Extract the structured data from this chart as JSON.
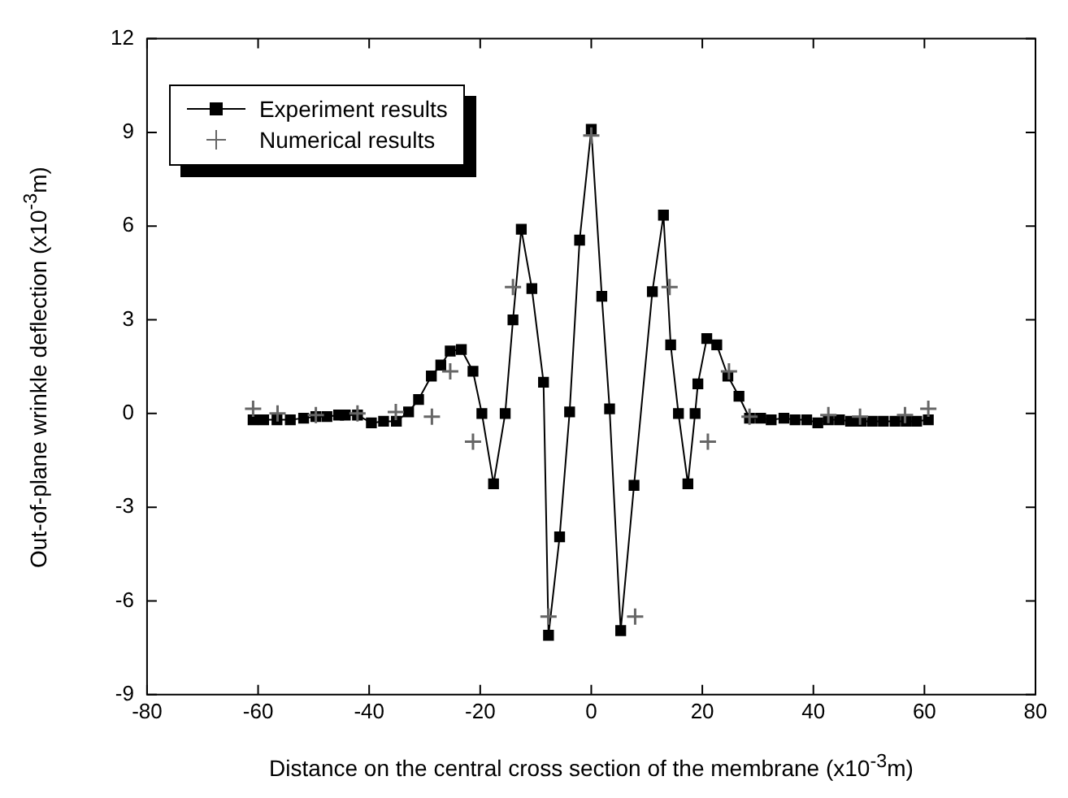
{
  "chart_data": {
    "type": "line",
    "xlabel": "Distance on the central cross section of the membrane (x10$^{-3}$m)",
    "ylabel": "Out-of-plane wrinkle deflection (x10$^{-3}$m)",
    "xlim": [
      -80,
      80
    ],
    "xticks": [
      -80,
      -60,
      -40,
      -20,
      0,
      20,
      40,
      60,
      80
    ],
    "ylim": [
      -9,
      12
    ],
    "yticks": [
      -9,
      -6,
      -3,
      0,
      3,
      6,
      9,
      12
    ],
    "grid": false,
    "legend": "top left",
    "series": [
      {
        "name": "Experiment results",
        "type": "line",
        "color": "#000000",
        "marker": "square",
        "line_style": "solid",
        "x": [
          -60.9,
          -59,
          -56.6,
          -54.2,
          -51.8,
          -49.6,
          -47.6,
          -45.5,
          -44.3,
          -42.1,
          -39.6,
          -37.4,
          -35.1,
          -32.9,
          -31.1,
          -28.8,
          -27.1,
          -25.4,
          -23.4,
          -21.3,
          -19.7,
          -17.6,
          -15.5,
          -14.1,
          -12.6,
          -10.7,
          -8.6,
          -7.7,
          -5.7,
          -3.9,
          -2.1,
          0,
          1.9,
          3.3,
          5.3,
          7.7,
          11.0,
          13.0,
          14.3,
          15.7,
          17.4,
          18.7,
          19.2,
          20.8,
          22.6,
          24.6,
          26.6,
          28.5,
          30.5,
          32.4,
          34.7,
          36.7,
          38.8,
          40.8,
          42.7,
          44.7,
          46.7,
          48.6,
          50.6,
          52.6,
          54.7,
          56.7,
          58.6,
          60.7
        ],
        "values": [
          -0.2,
          -0.2,
          -0.2,
          -0.2,
          -0.15,
          -0.1,
          -0.1,
          -0.05,
          -0.05,
          -0.05,
          -0.3,
          -0.25,
          -0.25,
          0.05,
          0.45,
          1.2,
          1.55,
          2.0,
          2.05,
          1.35,
          0,
          -2.25,
          0,
          3.0,
          5.9,
          4.0,
          1.0,
          -7.1,
          -3.95,
          0.05,
          5.55,
          9.1,
          3.75,
          0.15,
          -6.95,
          -2.3,
          3.9,
          6.35,
          2.2,
          0,
          -2.25,
          0,
          0.95,
          2.4,
          2.2,
          1.2,
          0.55,
          -0.15,
          -0.15,
          -0.2,
          -0.15,
          -0.2,
          -0.2,
          -0.3,
          -0.2,
          -0.2,
          -0.25,
          -0.25,
          -0.25,
          -0.25,
          -0.25,
          -0.25,
          -0.25,
          -0.2
        ]
      },
      {
        "name": "Numerical results",
        "type": "scatter",
        "color": "#666666",
        "marker": "cross",
        "x": [
          -60.9,
          -56.5,
          -49.6,
          -42.1,
          -35.2,
          -28.7,
          -25.4,
          -21.3,
          -14.1,
          -7.7,
          0,
          7.9,
          14.1,
          21.0,
          24.8,
          28.5,
          42.7,
          48.4,
          56.5,
          60.7
        ],
        "values": [
          0.15,
          0,
          -0.05,
          0,
          0.05,
          -0.1,
          1.35,
          -0.9,
          4.05,
          -6.5,
          8.9,
          -6.5,
          4.05,
          -0.9,
          1.35,
          -0.1,
          -0.05,
          -0.1,
          -0.05,
          0.15
        ]
      }
    ]
  }
}
